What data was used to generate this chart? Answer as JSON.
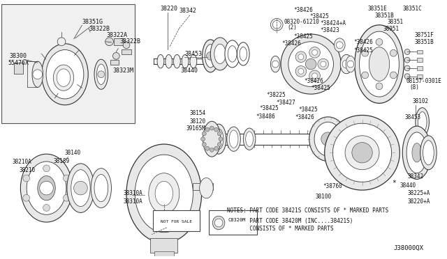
{
  "bg": "white",
  "inset_bg": "#f0f0f0",
  "ec": "#333333",
  "notes_line1": "NOTES: PART CODE 38421S CONSISTS OF * MARKED PARTS",
  "notes_line2": "       PART CODE 38420M (INC....38421S)",
  "notes_line3": "       CONSISTS OF * MARKED PARTS",
  "diagram_id": "J38000QX",
  "not_for_sale": "NOT FOR SALE"
}
